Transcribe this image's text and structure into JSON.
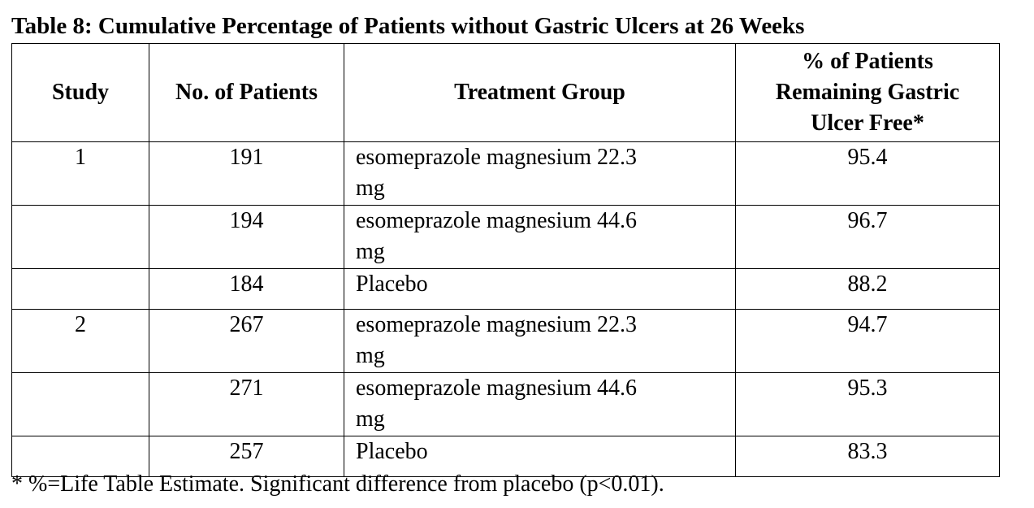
{
  "title": "Table 8: Cumulative Percentage of Patients without Gastric Ulcers at 26 Weeks",
  "table": {
    "header": [
      "Study",
      "No. of Patients",
      "Treatment Group",
      "% of Patients Remaining Gastric Ulcer Free*"
    ],
    "rows": [
      [
        "1",
        "191",
        "esomeprazole magnesium 22.3 mg",
        "95.4"
      ],
      [
        null,
        "194",
        "esomeprazole magnesium 44.6 mg",
        "96.7"
      ],
      [
        null,
        "184",
        "Placebo",
        "88.2"
      ],
      [
        "2",
        "267",
        "esomeprazole magnesium 22.3 mg",
        "94.7"
      ],
      [
        null,
        "271",
        "esomeprazole magnesium 44.6 mg",
        "95.3"
      ],
      [
        null,
        "257",
        "Placebo",
        "83.3"
      ]
    ]
  },
  "footnote": "* %=Life Table Estimate. Significant difference from placebo (p<0.01)."
}
